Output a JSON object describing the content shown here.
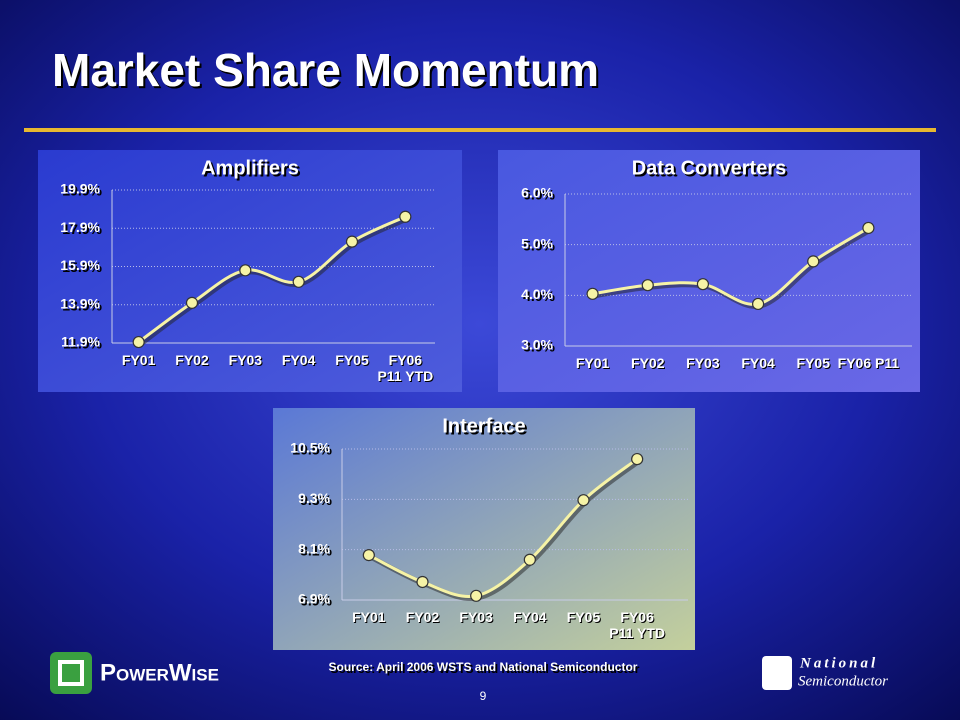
{
  "slide": {
    "title": "Market Share Momentum",
    "source": "Source: April 2006 WSTS and National Semiconductor",
    "page": "9",
    "logo_left": "PowerWise",
    "logo_right_1": "National",
    "logo_right_2": "Semiconductor"
  },
  "chart_data": [
    {
      "type": "line",
      "title": "Amplifiers",
      "categories": [
        "FY01",
        "FY02",
        "FY03",
        "FY04",
        "FY05",
        "FY06 P11 YTD"
      ],
      "values": [
        11.95,
        14.0,
        15.7,
        15.1,
        17.2,
        18.5
      ],
      "color": "#f6f3a6",
      "ylim": [
        11.9,
        19.9
      ],
      "yticks": [
        {
          "value": 11.9,
          "label": "11.9%"
        },
        {
          "value": 13.9,
          "label": "13.9%"
        },
        {
          "value": 15.9,
          "label": "15.9%"
        },
        {
          "value": 17.9,
          "label": "17.9%"
        },
        {
          "value": 19.9,
          "label": "19.9%"
        }
      ],
      "grid": true
    },
    {
      "type": "line",
      "title": "Data Converters",
      "categories": [
        "FY01",
        "FY02",
        "FY03",
        "FY04",
        "FY05",
        "FY06  P11"
      ],
      "values": [
        4.03,
        4.2,
        4.22,
        3.83,
        4.67,
        5.33
      ],
      "color": "#f6f3a6",
      "ylim": [
        3.0,
        6.0
      ],
      "yticks": [
        {
          "value": 3.0,
          "label": "3.0%"
        },
        {
          "value": 4.0,
          "label": "4.0%"
        },
        {
          "value": 5.0,
          "label": "5.0%"
        },
        {
          "value": 6.0,
          "label": "6.0%"
        }
      ],
      "grid": true
    },
    {
      "type": "line",
      "title": "Interface",
      "categories": [
        "FY01",
        "FY02",
        "FY03",
        "FY04",
        "FY05",
        "FY06 P11 YTD"
      ],
      "values": [
        7.97,
        7.33,
        7.0,
        7.86,
        9.28,
        10.26
      ],
      "color": "#f6f3a6",
      "ylim": [
        6.9,
        10.5
      ],
      "yticks": [
        {
          "value": 6.9,
          "label": "6.9%"
        },
        {
          "value": 8.1,
          "label": "8.1%"
        },
        {
          "value": 9.3,
          "label": "9.3%"
        },
        {
          "value": 10.5,
          "label": "10.5%"
        }
      ],
      "grid": true
    }
  ]
}
